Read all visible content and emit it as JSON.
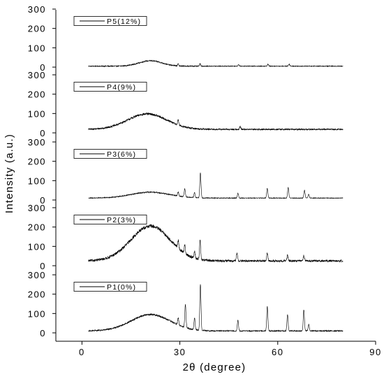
{
  "chart_data": {
    "type": "line",
    "title": "",
    "xlabel": "2θ (degree)",
    "ylabel": "Intensity (a.u.)",
    "xlim": [
      -8,
      90
    ],
    "ylim": [
      -10,
      310
    ],
    "x_ticks": [
      0,
      30,
      60,
      90
    ],
    "y_ticks": [
      0,
      100,
      200,
      300
    ],
    "layout": "stacked panels, top to bottom",
    "legend_position": "top-left of each panel",
    "line_color": "#000000",
    "series": [
      {
        "name": "P5(12%)",
        "x_range": [
          2,
          80
        ],
        "baseline": 5,
        "hump": {
          "center": 21,
          "height": 28,
          "width": 3.5
        },
        "noise": 6,
        "peaks": [
          [
            29.5,
            10
          ],
          [
            36.2,
            12
          ],
          [
            48,
            8
          ],
          [
            57,
            10
          ],
          [
            63.5,
            10
          ]
        ]
      },
      {
        "name": "P4(9%)",
        "x_range": [
          2,
          80
        ],
        "baseline": 18,
        "hump": {
          "center": 20,
          "height": 80,
          "width": 6
        },
        "noise": 12,
        "peaks": [
          [
            29.5,
            25
          ],
          [
            48.5,
            15
          ]
        ]
      },
      {
        "name": "P3(6%)",
        "x_range": [
          2,
          80
        ],
        "baseline": 10,
        "hump": {
          "center": 21,
          "height": 30,
          "width": 6
        },
        "noise": 6,
        "peaks": [
          [
            29.5,
            20
          ],
          [
            31.5,
            40
          ],
          [
            34.5,
            25
          ],
          [
            36.3,
            130
          ],
          [
            47.8,
            25
          ],
          [
            56.8,
            50
          ],
          [
            63.2,
            55
          ],
          [
            68.2,
            40
          ],
          [
            69.5,
            20
          ]
        ]
      },
      {
        "name": "P2(3%)",
        "x_range": [
          2,
          80
        ],
        "baseline": 25,
        "hump": {
          "center": 21,
          "height": 180,
          "width": 6
        },
        "noise": 18,
        "peaks": [
          [
            29.5,
            40
          ],
          [
            31.5,
            45
          ],
          [
            34.5,
            35
          ],
          [
            36.2,
            100
          ],
          [
            47.5,
            40
          ],
          [
            56.8,
            40
          ],
          [
            63,
            30
          ],
          [
            68,
            30
          ]
        ]
      },
      {
        "name": "P1(0%)",
        "x_range": [
          2,
          80
        ],
        "baseline": 10,
        "hump": {
          "center": 21,
          "height": 85,
          "width": 6
        },
        "noise": 10,
        "peaks": [
          [
            29.5,
            35
          ],
          [
            31.7,
            120
          ],
          [
            34.5,
            60
          ],
          [
            36.3,
            240
          ],
          [
            47.8,
            55
          ],
          [
            56.8,
            125
          ],
          [
            63,
            85
          ],
          [
            68,
            110
          ],
          [
            69.5,
            35
          ]
        ]
      }
    ]
  }
}
